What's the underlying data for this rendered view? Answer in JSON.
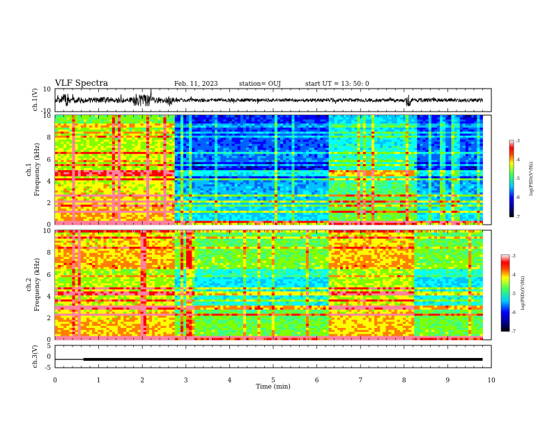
{
  "header": {
    "title": "VLF Spectra",
    "date": "Feb. 11, 2023",
    "station": "station= OUJ",
    "start": "start  UT =  13: 50: 0"
  },
  "chart_data": [
    {
      "id": "ch1-waveform",
      "type": "line",
      "ylabel": "ch.1(V)",
      "ylim": [
        -10,
        10
      ],
      "yticks": [
        "10",
        "-10"
      ],
      "xlim": [
        0,
        10
      ],
      "note": "noisy waveform, roughly ±2 V baseline with bursts reaching ±8 V around 1.5–2.7 min and near 8.1 min"
    },
    {
      "id": "ch1-spectrogram",
      "type": "heatmap",
      "ylabel": "ch.1\nFrequency (kHz)",
      "ylim": [
        0,
        10
      ],
      "yticks": [
        "0",
        "2",
        "4",
        "6",
        "8",
        "10"
      ],
      "xlim": [
        0,
        9.8
      ],
      "colorbar": {
        "label": "log(PSD)(V²/Hz)",
        "range": [
          -7,
          -3
        ],
        "ticks": [
          "-3",
          "-4",
          "-5",
          "-6",
          "-7"
        ]
      },
      "segments": [
        {
          "t_start": 0,
          "t_end": 2.75,
          "level": "high"
        },
        {
          "t_start": 2.75,
          "t_end": 6.3,
          "level": "low"
        },
        {
          "t_start": 6.3,
          "t_end": 8.2,
          "level": "medium"
        },
        {
          "t_start": 8.2,
          "t_end": 9.8,
          "level": "low"
        }
      ]
    },
    {
      "id": "ch2-spectrogram",
      "type": "heatmap",
      "ylabel": "ch.2\nFrequency (kHz)",
      "ylim": [
        0,
        10
      ],
      "yticks": [
        "0",
        "2",
        "4",
        "6",
        "8",
        "10"
      ],
      "xlim": [
        0,
        9.8
      ],
      "colorbar": {
        "label": "log(PSD)(V²/Hz)",
        "range": [
          -7,
          -3
        ],
        "ticks": [
          "-3",
          "-4",
          "-5",
          "-6",
          "-7"
        ]
      },
      "segments": [
        {
          "t_start": 0,
          "t_end": 2.75,
          "level": "high"
        },
        {
          "t_start": 2.75,
          "t_end": 6.3,
          "level": "medium"
        },
        {
          "t_start": 6.3,
          "t_end": 8.2,
          "level": "high"
        },
        {
          "t_start": 8.2,
          "t_end": 9.8,
          "level": "medium"
        }
      ]
    },
    {
      "id": "ch3-trace",
      "type": "line",
      "ylabel": "ch.3(V)",
      "ylim": [
        -5,
        5
      ],
      "yticks": [
        "5",
        "0",
        "-5"
      ],
      "xlim": [
        0,
        10
      ],
      "x": [
        0,
        0.65,
        0.65,
        9.8
      ],
      "y": [
        -1.3,
        -1.3,
        -1.3,
        -1.3
      ],
      "note": "thin line until 0.65 min, thick line afterward"
    }
  ],
  "xaxis": {
    "label": "Time (min)",
    "ticks": [
      "0",
      "1",
      "2",
      "3",
      "4",
      "5",
      "6",
      "7",
      "8",
      "9",
      "10"
    ],
    "range": [
      0,
      10
    ]
  },
  "colors": {
    "colormap": [
      "#00007f",
      "#0000ff",
      "#0080ff",
      "#00ffff",
      "#40ff80",
      "#80ff00",
      "#ffff00",
      "#ff8000",
      "#ff0000",
      "#ff80a0",
      "#ffffff"
    ]
  }
}
